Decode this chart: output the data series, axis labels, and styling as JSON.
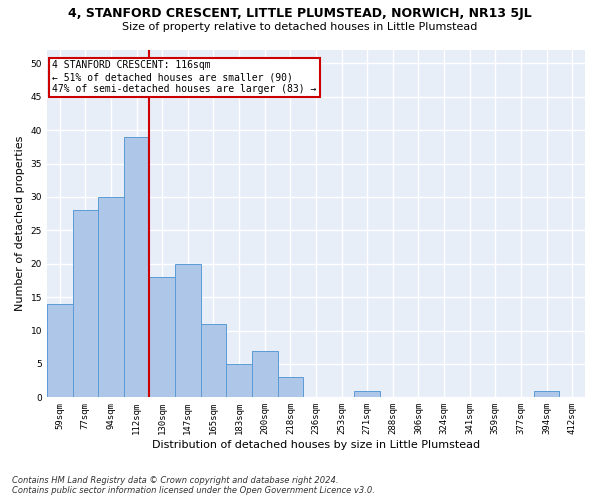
{
  "title": "4, STANFORD CRESCENT, LITTLE PLUMSTEAD, NORWICH, NR13 5JL",
  "subtitle": "Size of property relative to detached houses in Little Plumstead",
  "xlabel": "Distribution of detached houses by size in Little Plumstead",
  "ylabel": "Number of detached properties",
  "footer_line1": "Contains HM Land Registry data © Crown copyright and database right 2024.",
  "footer_line2": "Contains public sector information licensed under the Open Government Licence v3.0.",
  "annotation_line1": "4 STANFORD CRESCENT: 116sqm",
  "annotation_line2": "← 51% of detached houses are smaller (90)",
  "annotation_line3": "47% of semi-detached houses are larger (83) →",
  "bar_categories": [
    "59sqm",
    "77sqm",
    "94sqm",
    "112sqm",
    "130sqm",
    "147sqm",
    "165sqm",
    "183sqm",
    "200sqm",
    "218sqm",
    "236sqm",
    "253sqm",
    "271sqm",
    "288sqm",
    "306sqm",
    "324sqm",
    "341sqm",
    "359sqm",
    "377sqm",
    "394sqm",
    "412sqm"
  ],
  "bar_values": [
    14,
    28,
    30,
    39,
    18,
    20,
    11,
    5,
    7,
    3,
    0,
    0,
    1,
    0,
    0,
    0,
    0,
    0,
    0,
    1,
    0
  ],
  "bar_color": "#aec6e8",
  "bar_edge_color": "#5b9bd5",
  "vline_color": "#cc0000",
  "vline_x": 3.5,
  "ylim": [
    0,
    52
  ],
  "yticks": [
    0,
    5,
    10,
    15,
    20,
    25,
    30,
    35,
    40,
    45,
    50
  ],
  "bg_color": "#e8eef8",
  "grid_color": "#ffffff",
  "annotation_box_color": "#cc0000",
  "title_fontsize": 9,
  "subtitle_fontsize": 8,
  "axis_label_fontsize": 8,
  "tick_fontsize": 6.5,
  "footer_fontsize": 6,
  "annotation_fontsize": 7
}
